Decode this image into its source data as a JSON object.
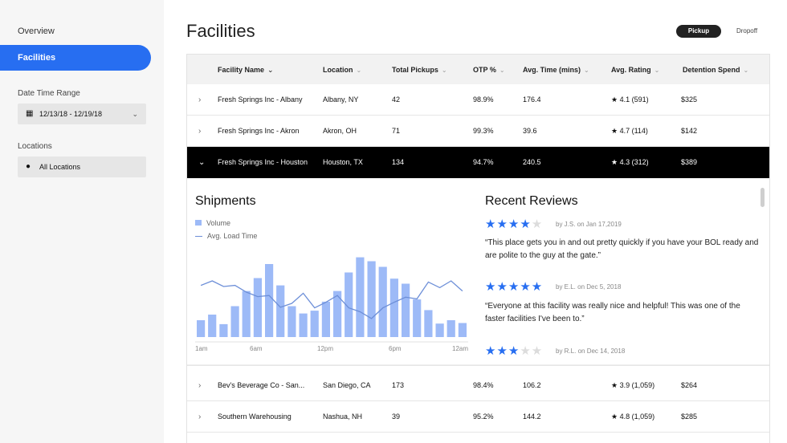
{
  "sidebar": {
    "nav": [
      {
        "label": "Overview"
      },
      {
        "label": "Facilities"
      }
    ],
    "date_range": {
      "label": "Date Time Range",
      "value": "12/13/18 - 12/19/18"
    },
    "locations": {
      "label": "Locations",
      "value": "All Locations"
    }
  },
  "page": {
    "title": "Facilities"
  },
  "toggle": {
    "pickup": "Pickup",
    "dropoff": "Dropoff"
  },
  "table": {
    "columns": [
      "Facility Name",
      "Location",
      "Total Pickups",
      "OTP %",
      "Avg. Time (mins)",
      "Avg. Rating",
      "Detention Spend"
    ],
    "rows": [
      {
        "name": "Fresh Springs Inc - Albany",
        "location": "Albany, NY",
        "pickups": "42",
        "otp": "98.9%",
        "time": "176.4",
        "rating": "★ 4.1 (591)",
        "spend": "$325"
      },
      {
        "name": "Fresh Springs Inc - Akron",
        "location": "Akron, OH",
        "pickups": "71",
        "otp": "99.3%",
        "time": "39.6",
        "rating": "★ 4.7 (114)",
        "spend": "$142"
      },
      {
        "name": "Fresh Springs Inc - Houston",
        "location": "Houston, TX",
        "pickups": "134",
        "otp": "94.7%",
        "time": "240.5",
        "rating": "★ 4.3 (312)",
        "spend": "$389"
      },
      {
        "name": "Bev's Beverage Co - San...",
        "location": "San Diego, CA",
        "pickups": "173",
        "otp": "98.4%",
        "time": "106.2",
        "rating": "★ 3.9 (1,059)",
        "spend": "$264"
      },
      {
        "name": "Southern Warehousing",
        "location": "Nashua, NH",
        "pickups": "39",
        "otp": "95.2%",
        "time": "144.2",
        "rating": "★ 4.8 (1,059)",
        "spend": "$285"
      }
    ]
  },
  "shipments": {
    "title": "Shipments",
    "legend_volume": "Volume",
    "legend_load": "Avg. Load Time",
    "x_labels": [
      "1am",
      "6am",
      "12pm",
      "6pm",
      "12am"
    ],
    "volume": [
      3,
      4,
      2.3,
      5.5,
      8.2,
      10.5,
      13,
      9.2,
      5.5,
      4.2,
      4.7,
      6.3,
      8.2,
      11.5,
      14.2,
      13.5,
      12.5,
      10.4,
      9.5,
      6.7,
      4.8,
      2.4,
      3,
      2.5
    ],
    "load_time": [
      9.2,
      10,
      9,
      9.2,
      8,
      7.2,
      7.4,
      5.3,
      6,
      7.8,
      5.2,
      6.2,
      7.4,
      5.2,
      4.5,
      3.3,
      5.2,
      6.2,
      7.1,
      6.8,
      9.8,
      8.8,
      10,
      8.2
    ],
    "colors": {
      "bar": "#9dbaf7",
      "line": "#6d8fd8"
    }
  },
  "reviews": {
    "title": "Recent Reviews",
    "items": [
      {
        "stars": 4,
        "byline": "by J.S. on Jan 17,2019",
        "text": "“This place gets you in and out pretty quickly if you have your BOL ready and are polite to the guy at the gate.”"
      },
      {
        "stars": 5,
        "byline": "by E.L. on Dec 5, 2018",
        "text": "“Everyone at this facility was really nice and helpful! This was one of the faster facilities I've been to.”"
      },
      {
        "stars": 3,
        "byline": "by R.L. on Dec 14, 2018",
        "text": ""
      }
    ]
  },
  "colors": {
    "accent": "#276ef1",
    "selected_row": "#000000"
  }
}
